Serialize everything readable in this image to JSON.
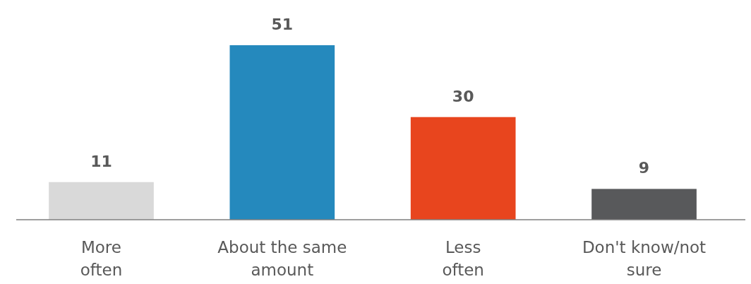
{
  "chart_data": {
    "type": "bar",
    "categories": [
      "More\noften",
      "About the same\namount",
      "Less\noften",
      "Don't know/not\nsure"
    ],
    "values": [
      11,
      51,
      30,
      9
    ],
    "colors": [
      "#d9d9d9",
      "#2589bd",
      "#e8451e",
      "#58595b"
    ],
    "data_labels": true
  }
}
